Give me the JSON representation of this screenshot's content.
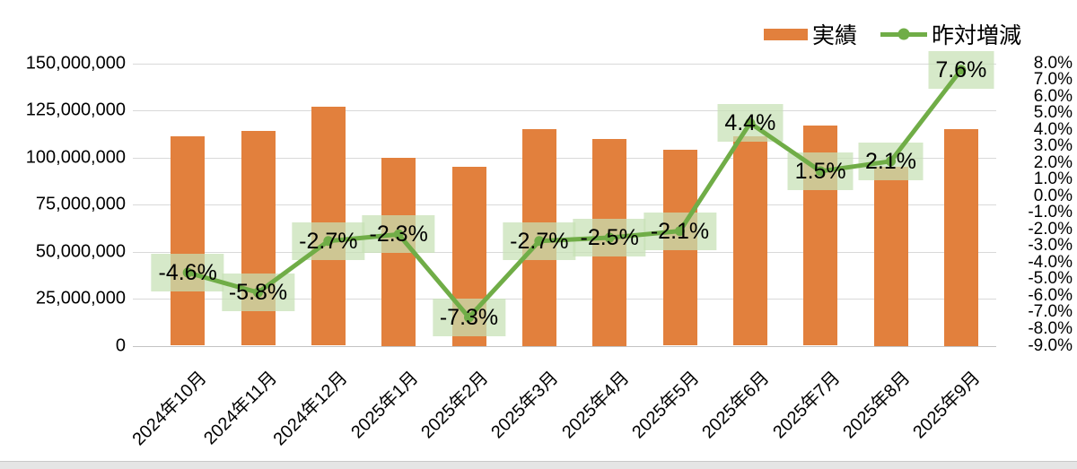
{
  "colors": {
    "bar": "#E2803D",
    "line": "#70AD47",
    "marker": "#70AD47",
    "data_label_bg": "rgba(198,224,180,0.72)",
    "gridline": "#D9D9D9",
    "text": "#000000"
  },
  "legend": {
    "items": [
      {
        "label": "実績"
      },
      {
        "label": "昨対増減"
      }
    ]
  },
  "chart_data": {
    "type": "bar",
    "subtype": "combo-bar-line",
    "title": "",
    "categories": [
      "2024年10月",
      "2024年11月",
      "2024年12月",
      "2025年1月",
      "2025年2月",
      "2025年3月",
      "2025年4月",
      "2025年5月",
      "2025年6月",
      "2025年7月",
      "2025年8月",
      "2025年9月"
    ],
    "series": [
      {
        "name": "実績",
        "type": "bar",
        "axis": "left",
        "values": [
          111000000,
          114000000,
          127000000,
          100000000,
          95000000,
          115000000,
          110000000,
          104000000,
          111000000,
          117000000,
          95000000,
          115000000
        ]
      },
      {
        "name": "昨対増減",
        "type": "line",
        "axis": "right",
        "unit": "%",
        "values": [
          -4.6,
          -5.8,
          -2.7,
          -2.3,
          -7.3,
          -2.7,
          -2.5,
          -2.1,
          4.4,
          1.5,
          2.1,
          7.6
        ],
        "point_labels": [
          "-4.6%",
          "-5.8%",
          "-2.7%",
          "-2.3%",
          "-7.3%",
          "-2.7%",
          "-2.5%",
          "-2.1%",
          "4.4%",
          "1.5%",
          "2.1%",
          "7.6%"
        ]
      }
    ],
    "left_axis": {
      "min": 0,
      "max": 150000000,
      "step": 25000000,
      "tick_labels": [
        "150,000,000",
        "125,000,000",
        "100,000,000",
        "75,000,000",
        "50,000,000",
        "25,000,000",
        "0"
      ]
    },
    "right_axis": {
      "min": -9.0,
      "max": 8.0,
      "step": 1.0,
      "tick_labels": [
        "8.0%",
        "7.0%",
        "6.0%",
        "5.0%",
        "4.0%",
        "3.0%",
        "2.0%",
        "1.0%",
        "0.0%",
        "-1.0%",
        "-2.0%",
        "-3.0%",
        "-4.0%",
        "-5.0%",
        "-6.0%",
        "-7.0%",
        "-8.0%",
        "-9.0%"
      ]
    },
    "grid": true,
    "legend_position": "top-right",
    "x_label_rotation_deg": 45
  }
}
